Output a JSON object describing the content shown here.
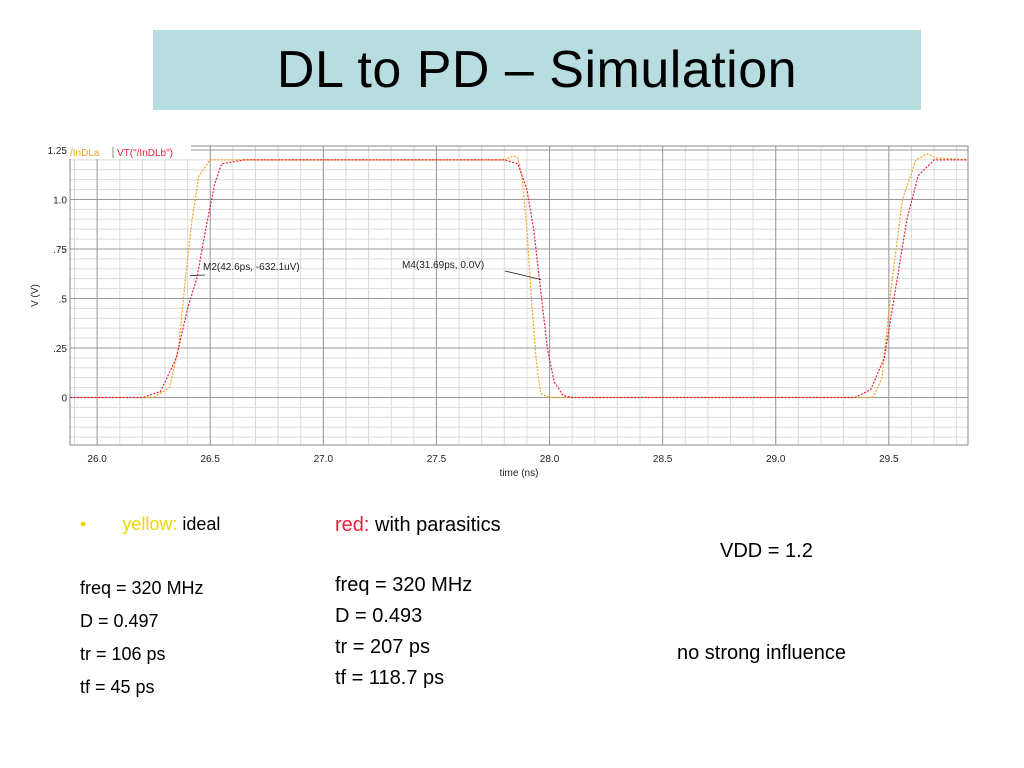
{
  "slide": {
    "title": "DL to PD – Simulation"
  },
  "chart_data": {
    "type": "line",
    "xlabel": "time (ns)",
    "ylabel": "V (V)",
    "xlim": [
      25.88,
      29.85
    ],
    "ylim": [
      -0.24,
      1.27
    ],
    "x_ticks": [
      26.0,
      26.5,
      27.0,
      27.5,
      28.0,
      28.5,
      29.0,
      29.5
    ],
    "x_tick_labels": [
      "26.0",
      "26.5",
      "27.0",
      "27.5",
      "28.0",
      "28.5",
      "29.0",
      "29.5"
    ],
    "y_ticks": [
      0,
      0.25,
      0.5,
      0.75,
      1.0,
      1.25
    ],
    "y_tick_labels": [
      "0",
      ".25",
      ".5",
      ".75",
      "1.0",
      "1.25"
    ],
    "grid": true,
    "legend_position": "top-left",
    "series": [
      {
        "name": "/InDLa",
        "color": "#f2a31b",
        "x": [
          25.88,
          26.25,
          26.32,
          26.36,
          26.39,
          26.42,
          26.45,
          26.5,
          26.6,
          27.8,
          27.84,
          27.86,
          27.88,
          27.9,
          27.92,
          27.94,
          27.96,
          28.0,
          29.43,
          29.47,
          29.51,
          29.56,
          29.62,
          29.67,
          29.71,
          29.85
        ],
        "y": [
          0,
          0,
          0.05,
          0.25,
          0.6,
          0.9,
          1.12,
          1.2,
          1.2,
          1.2,
          1.22,
          1.21,
          1.1,
          0.85,
          0.5,
          0.2,
          0.02,
          0,
          0,
          0.1,
          0.55,
          1.0,
          1.2,
          1.23,
          1.21,
          1.2
        ]
      },
      {
        "name": "VT(\"/InDLb\")",
        "color": "#e8203a",
        "x": [
          25.88,
          26.2,
          26.28,
          26.35,
          26.4,
          26.44,
          26.48,
          26.52,
          26.55,
          26.65,
          27.8,
          27.86,
          27.9,
          27.93,
          27.96,
          27.99,
          28.02,
          28.06,
          28.1,
          29.35,
          29.42,
          29.48,
          29.53,
          29.58,
          29.63,
          29.7,
          29.85
        ],
        "y": [
          0,
          0,
          0.03,
          0.2,
          0.45,
          0.6,
          0.85,
          1.08,
          1.18,
          1.2,
          1.2,
          1.18,
          1.05,
          0.85,
          0.55,
          0.25,
          0.08,
          0.01,
          0,
          0,
          0.04,
          0.2,
          0.55,
          0.9,
          1.12,
          1.2,
          1.2
        ]
      }
    ],
    "annotations": [
      {
        "text": "M2(42.6ps, -632.1uV)",
        "x": 26.42,
        "y": 0.6
      },
      {
        "text": "M4(31.69ps, 0.0V)",
        "x": 27.95,
        "y": 0.6
      }
    ]
  },
  "notes": {
    "yellow_label": "yellow:",
    "yellow_desc": "ideal",
    "yellow_freq": "freq = 320 MHz",
    "yellow_d": "D = 0.497",
    "yellow_tr": "tr = 106 ps",
    "yellow_tf": "tf = 45 ps",
    "red_label": "red:",
    "red_desc": "with parasitics",
    "red_freq": "freq = 320 MHz",
    "red_d": "D = 0.493",
    "red_tr": "tr = 207 ps",
    "red_tf": "tf = 118.7 ps",
    "vdd": "VDD = 1.2",
    "influence": "no strong influence"
  },
  "colors": {
    "title_bg": "#b7dde0",
    "yellow": "#f2d300",
    "red": "#e8203a"
  }
}
